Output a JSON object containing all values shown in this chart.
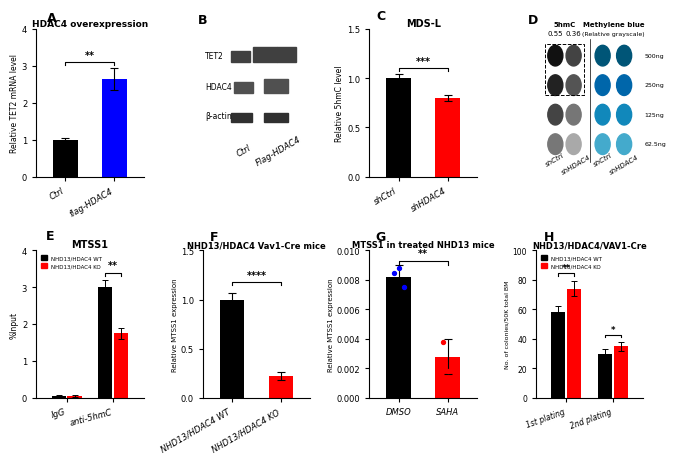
{
  "panel_A": {
    "title": "HDAC4 overexpression",
    "categories": [
      "Ctrl",
      "flag-HDAC4"
    ],
    "values": [
      1.0,
      2.65
    ],
    "errors": [
      0.05,
      0.3
    ],
    "colors": [
      "#000000",
      "#0000ff"
    ],
    "ylabel": "Relative TET2 mRNA level",
    "ylim": [
      0,
      4
    ],
    "yticks": [
      0,
      1,
      2,
      3,
      4
    ],
    "sig_label": "**"
  },
  "panel_C": {
    "title": "MDS-L",
    "categories": [
      "shCtrl",
      "shHDAC4"
    ],
    "values": [
      1.0,
      0.8
    ],
    "errors": [
      0.04,
      0.03
    ],
    "colors": [
      "#000000",
      "#ff0000"
    ],
    "ylabel": "Relative 5hmC level",
    "ylim": [
      0,
      1.5
    ],
    "yticks": [
      0.0,
      0.5,
      1.0,
      1.5
    ],
    "sig_label": "***"
  },
  "panel_E": {
    "title": "MTSS1",
    "categories": [
      "IgG",
      "anti-5hmC"
    ],
    "group_labels": [
      "NHD13/HDAC4 WT",
      "NHD13/HDAC4 KO"
    ],
    "values_wt": [
      0.05,
      3.0
    ],
    "values_ko": [
      0.05,
      1.75
    ],
    "errors_wt": [
      0.02,
      0.2
    ],
    "errors_ko": [
      0.02,
      0.15
    ],
    "colors": [
      "#000000",
      "#ff0000"
    ],
    "ylabel": "%Input",
    "ylim": [
      0,
      4
    ],
    "yticks": [
      0,
      1,
      2,
      3,
      4
    ],
    "sig_label": "**"
  },
  "panel_F": {
    "title": "NHD13/HDAC4 Vav1-Cre mice",
    "categories": [
      "NHD13/HDAC4 WT",
      "NHD13/HDAC4 KO"
    ],
    "values": [
      1.0,
      0.22
    ],
    "errors": [
      0.07,
      0.04
    ],
    "colors": [
      "#000000",
      "#ff0000"
    ],
    "ylabel": "Relative MTSS1 expression",
    "ylim": [
      0,
      1.5
    ],
    "yticks": [
      0.0,
      0.5,
      1.0,
      1.5
    ],
    "sig_label": "****"
  },
  "panel_G": {
    "title": "MTSS1 in treated NHD13 mice",
    "categories": [
      "DMSO",
      "SAHA"
    ],
    "values": [
      0.0082,
      0.0028
    ],
    "errors": [
      0.0008,
      0.0012
    ],
    "scatter_dmso": [
      0.0085,
      0.0088,
      0.0075
    ],
    "scatter_saha": [
      0.0038,
      0.0018,
      0.0008
    ],
    "colors_scatter": [
      "#0000ff",
      "#ff0000"
    ],
    "ylabel": "Relative MTSS1 expression",
    "ylim": [
      0,
      0.01
    ],
    "yticks": [
      0.0,
      0.002,
      0.004,
      0.006,
      0.008,
      0.01
    ],
    "sig_label": "**"
  },
  "panel_H": {
    "title": "NHD13/HDAC4/VAV1-Cre",
    "categories": [
      "1st plating",
      "2nd plating"
    ],
    "group_labels": [
      "NHD13/HDAC4 WT",
      "NHD13/HDAC4 KO"
    ],
    "values_wt": [
      58,
      30
    ],
    "values_ko": [
      74,
      35
    ],
    "errors_wt": [
      4,
      3
    ],
    "errors_ko": [
      5,
      3
    ],
    "colors": [
      "#000000",
      "#ff0000"
    ],
    "ylabel": "No. of colonies/50K total BM",
    "ylim": [
      0,
      100
    ],
    "yticks": [
      0,
      20,
      40,
      60,
      80,
      100
    ],
    "sig_wt": [
      "**",
      "*"
    ]
  }
}
